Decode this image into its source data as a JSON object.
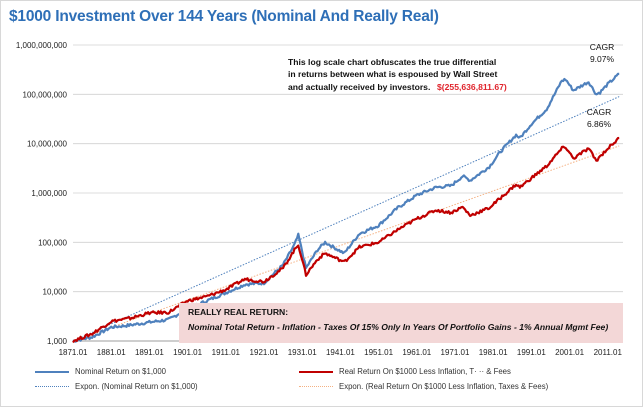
{
  "chart_data": {
    "type": "line",
    "title": "$1000 Investment Over 144 Years (Nominal And Really Real)",
    "y_scale": "log",
    "ylim": [
      1000,
      1000000000
    ],
    "xlim": [
      1871,
      2015
    ],
    "y_ticks": [
      "1,000,000,000",
      "100,000,000",
      "10,000,000",
      "1,000,000",
      "100,000",
      "10,000",
      "1,000"
    ],
    "x_ticks": [
      "1871.01",
      "1881.01",
      "1891.01",
      "1901.01",
      "1911.01",
      "1921.01",
      "1931.01",
      "1941.01",
      "1951.01",
      "1961.01",
      "1971.01",
      "1981.01",
      "1991.01",
      "2001.01",
      "2011.01"
    ],
    "series": [
      {
        "name": "Nominal Return on $1,000",
        "color": "#4f81bd",
        "points": [
          [
            1871,
            1000
          ],
          [
            1876,
            1200
          ],
          [
            1881,
            1900
          ],
          [
            1886,
            2100
          ],
          [
            1891,
            2400
          ],
          [
            1896,
            2700
          ],
          [
            1901,
            4500
          ],
          [
            1906,
            6500
          ],
          [
            1911,
            9500
          ],
          [
            1916,
            14000
          ],
          [
            1921,
            15000
          ],
          [
            1926,
            35000
          ],
          [
            1929,
            90000
          ],
          [
            1930,
            140000
          ],
          [
            1932,
            30000
          ],
          [
            1935,
            70000
          ],
          [
            1937,
            100000
          ],
          [
            1942,
            60000
          ],
          [
            1946,
            150000
          ],
          [
            1951,
            220000
          ],
          [
            1956,
            500000
          ],
          [
            1961,
            900000
          ],
          [
            1966,
            1300000
          ],
          [
            1970,
            1400000
          ],
          [
            1973,
            2200000
          ],
          [
            1975,
            1800000
          ],
          [
            1980,
            3400000
          ],
          [
            1983,
            7000000
          ],
          [
            1987,
            15000000
          ],
          [
            1988,
            13000000
          ],
          [
            1991,
            25000000
          ],
          [
            1995,
            50000000
          ],
          [
            1999,
            190000000
          ],
          [
            2000,
            200000000
          ],
          [
            2002,
            120000000
          ],
          [
            2006,
            180000000
          ],
          [
            2008,
            100000000
          ],
          [
            2009,
            110000000
          ],
          [
            2011,
            160000000
          ],
          [
            2014,
            260000000
          ]
        ]
      },
      {
        "name": "Real Return On $1000 Less Inflation, Taxes & Fees",
        "color": "#c00000",
        "points": [
          [
            1871,
            1000
          ],
          [
            1876,
            1400
          ],
          [
            1881,
            2500
          ],
          [
            1886,
            2900
          ],
          [
            1891,
            3700
          ],
          [
            1896,
            3800
          ],
          [
            1901,
            6500
          ],
          [
            1906,
            8000
          ],
          [
            1911,
            11000
          ],
          [
            1916,
            18000
          ],
          [
            1921,
            16000
          ],
          [
            1926,
            30000
          ],
          [
            1929,
            70000
          ],
          [
            1930,
            90000
          ],
          [
            1932,
            22000
          ],
          [
            1935,
            45000
          ],
          [
            1937,
            60000
          ],
          [
            1942,
            40000
          ],
          [
            1946,
            80000
          ],
          [
            1951,
            100000
          ],
          [
            1956,
            180000
          ],
          [
            1961,
            300000
          ],
          [
            1966,
            450000
          ],
          [
            1970,
            400000
          ],
          [
            1973,
            520000
          ],
          [
            1975,
            350000
          ],
          [
            1980,
            500000
          ],
          [
            1983,
            800000
          ],
          [
            1987,
            1500000
          ],
          [
            1988,
            1300000
          ],
          [
            1991,
            2000000
          ],
          [
            1995,
            3500000
          ],
          [
            1999,
            8000000
          ],
          [
            2000,
            8500000
          ],
          [
            2002,
            5000000
          ],
          [
            2006,
            8000000
          ],
          [
            2008,
            4500000
          ],
          [
            2009,
            5500000
          ],
          [
            2011,
            8000000
          ],
          [
            2014,
            13000000
          ]
        ]
      },
      {
        "name": "Expon. (Nominal Return on $1,000)",
        "color": "#4f81bd",
        "trend": [
          [
            1871,
            1000
          ],
          [
            2014,
            90000000
          ]
        ]
      },
      {
        "name": "Expon. (Real Return On $1000 Less Inflation, Taxes & Fees)",
        "color": "#f4b183",
        "trend": [
          [
            1871,
            1000
          ],
          [
            2014,
            9000000
          ]
        ]
      }
    ],
    "annotations": {
      "description_lines": [
        "This log scale chart obfuscates the true differential",
        "in returns between what is espoused by Wall Street",
        "and actually received by investors."
      ],
      "difference_value": "$(255,636,811.67)",
      "cagr_nominal": [
        "CAGR",
        "9.07%"
      ],
      "cagr_real": [
        "CAGR",
        "6.86%"
      ]
    },
    "note_box": {
      "heading": "REALLY REAL RETURN:",
      "text": "Nominal Total Return - Inflation - Taxes Of 15% Only In Years Of Portfolio Gains - 1% Annual Mgmt Fee)"
    },
    "legend": [
      {
        "label": "Nominal Return on $1,000",
        "color": "#4f81bd",
        "style": "solid"
      },
      {
        "label": "Real Return On $1000 Less Inflation, T· ·· & Fees",
        "color": "#c00000",
        "style": "solid"
      },
      {
        "label": "Expon. (Nominal Return on $1,000)",
        "color": "#4f81bd",
        "style": "dotted"
      },
      {
        "label": "Expon. (Real Return On $1000 Less Inflation, Taxes & Fees)",
        "color": "#f4b183",
        "style": "dotted"
      }
    ]
  }
}
